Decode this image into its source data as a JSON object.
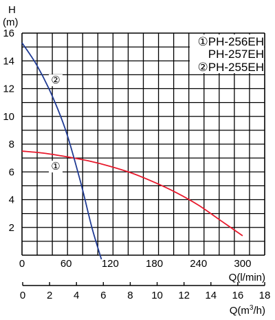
{
  "chart_data": {
    "type": "line",
    "y_axis": {
      "label_line1": "H",
      "label_line2": "(m)",
      "ylim": [
        0,
        16
      ],
      "ticks": [
        "2",
        "4",
        "6",
        "8",
        "10",
        "12",
        "14",
        "16"
      ]
    },
    "x_axis_primary": {
      "label": "Q(l/min)",
      "xlim": [
        0,
        330
      ],
      "ticks": [
        "0",
        "60",
        "120",
        "180",
        "240",
        "300"
      ]
    },
    "x_axis_secondary": {
      "label_prefix": "Q(m",
      "label_sup": "3",
      "label_suffix": "/h)",
      "ticks": [
        "0",
        "2",
        "4",
        "6",
        "8",
        "10",
        "12",
        "14",
        "16",
        "18"
      ]
    },
    "legend": [
      {
        "marker": "①",
        "text": "PH-256EH"
      },
      {
        "marker": "",
        "text": "PH-257EH"
      },
      {
        "marker": "②",
        "text": "PH-255EH"
      }
    ],
    "grid": true,
    "series": [
      {
        "marker": "①",
        "color": "#e8192c",
        "x": [
          0,
          30,
          60,
          90,
          120,
          150,
          180,
          210,
          240,
          270,
          300
        ],
        "y": [
          7.5,
          7.35,
          7.1,
          6.8,
          6.4,
          5.9,
          5.25,
          4.5,
          3.6,
          2.5,
          1.4
        ]
      },
      {
        "marker": "②",
        "color": "#1f3a93",
        "x": [
          0,
          20,
          40,
          60,
          80,
          95,
          108
        ],
        "y": [
          15.3,
          13.7,
          11.6,
          8.9,
          5.2,
          2.0,
          -0.3
        ]
      }
    ]
  }
}
